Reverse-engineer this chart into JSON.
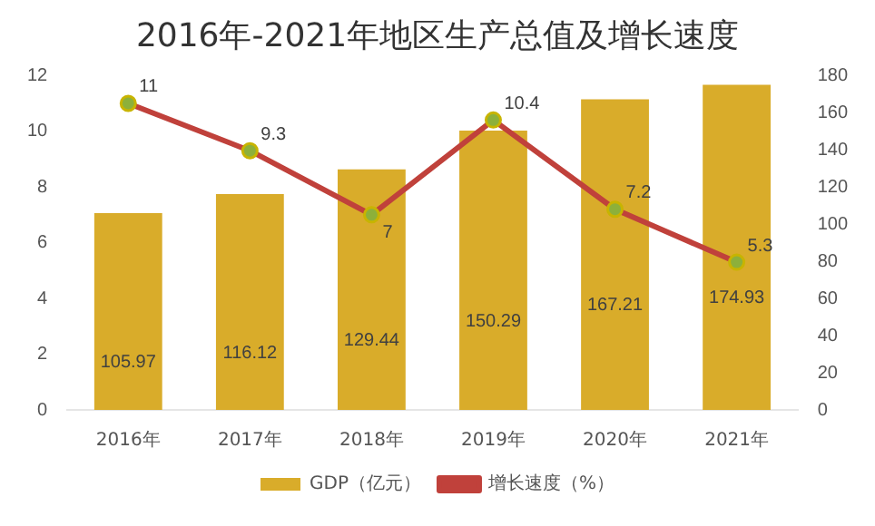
{
  "chart_data": {
    "type": "bar",
    "title": "2016年-2021年地区生产总值及增长速度",
    "categories": [
      "2016年",
      "2017年",
      "2018年",
      "2019年",
      "2020年",
      "2021年"
    ],
    "series": [
      {
        "name": "GDP（亿元）",
        "axis": "y2",
        "color": "#d9ac2a",
        "values": [
          105.97,
          116.12,
          129.44,
          150.29,
          167.21,
          174.93
        ]
      },
      {
        "name": "增长速度（%）",
        "type": "line",
        "axis": "y",
        "color": "#c0413b",
        "values": [
          11,
          9.3,
          7,
          10.4,
          7.2,
          5.3
        ]
      }
    ],
    "ylim": [
      0,
      12
    ],
    "yticks": [
      0,
      2,
      4,
      6,
      8,
      10,
      12
    ],
    "y2lim": [
      0,
      180
    ],
    "y2ticks": [
      0,
      20,
      40,
      60,
      80,
      100,
      120,
      140,
      160,
      180
    ],
    "data_labels": true,
    "legend": "bottom",
    "marker": "circle",
    "grid": false
  }
}
